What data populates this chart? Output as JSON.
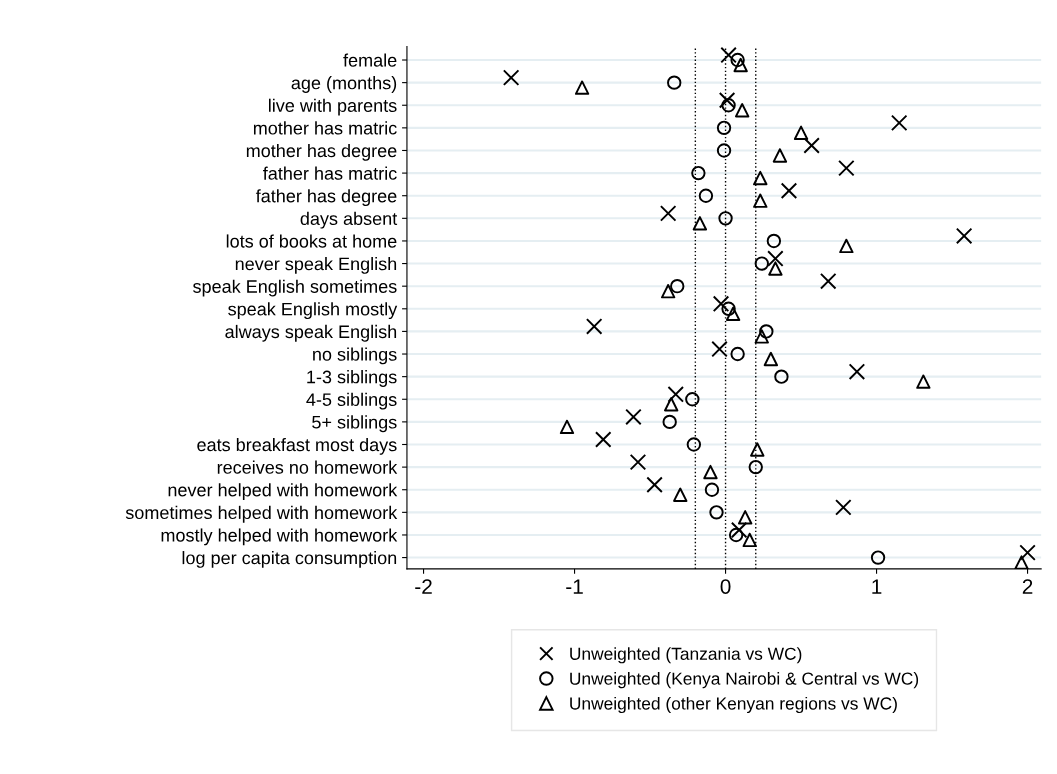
{
  "chart_data": {
    "type": "scatter",
    "orientation": "horizontal",
    "categories": [
      "female",
      "age (months)",
      "live with parents",
      "mother has matric",
      "mother has degree",
      "father has matric",
      "father has degree",
      "days absent",
      "lots of books at home",
      "never speak English",
      "speak English sometimes",
      "speak English mostly",
      "always speak English",
      "no siblings",
      "1-3 siblings",
      "4-5 siblings",
      "5+ siblings",
      "eats breakfast most days",
      "receives no homework",
      "never helped with homework",
      "sometimes helped with homework",
      "mostly helped with homework",
      "log per capita consumption"
    ],
    "series": [
      {
        "name": "Unweighted (Tanzania vs WC)",
        "color": "#000000",
        "marker": "cross",
        "values": [
          0.02,
          -1.42,
          0.01,
          1.15,
          0.57,
          0.8,
          0.42,
          -0.38,
          1.58,
          0.33,
          0.68,
          -0.03,
          -0.87,
          -0.04,
          0.87,
          -0.33,
          -0.61,
          -0.81,
          -0.58,
          -0.47,
          0.78,
          0.09,
          2.0
        ]
      },
      {
        "name": "Unweighted (Kenya Nairobi & Central vs WC)",
        "color": "#000000",
        "marker": "circle",
        "values": [
          0.08,
          -0.34,
          0.02,
          -0.01,
          -0.01,
          -0.18,
          -0.13,
          0.0,
          0.32,
          0.24,
          -0.32,
          0.02,
          0.27,
          0.08,
          0.37,
          -0.22,
          -0.37,
          -0.21,
          0.2,
          -0.09,
          -0.06,
          0.07,
          1.01
        ]
      },
      {
        "name": "Unweighted (other Kenyan regions vs WC)",
        "color": "#000000",
        "marker": "triangle",
        "values": [
          0.1,
          -0.95,
          0.11,
          0.5,
          0.36,
          0.23,
          0.23,
          -0.17,
          0.8,
          0.33,
          -0.38,
          0.05,
          0.24,
          0.3,
          1.31,
          -0.36,
          -1.05,
          0.21,
          -0.1,
          -0.3,
          0.13,
          0.16,
          1.96
        ]
      }
    ],
    "xlim": [
      -2.11,
      2.09
    ],
    "xticks": [
      -2,
      -1,
      0,
      1,
      2
    ],
    "ref_lines": [
      {
        "axis": "x",
        "value": -0.2,
        "line_style": "dotted",
        "color": "#000000"
      },
      {
        "axis": "x",
        "value": 0,
        "line_style": "dotted",
        "color": "#000000"
      },
      {
        "axis": "x",
        "value": 0.2,
        "line_style": "dotted",
        "color": "#000000"
      }
    ],
    "grid": "y",
    "legend": "bottom"
  }
}
